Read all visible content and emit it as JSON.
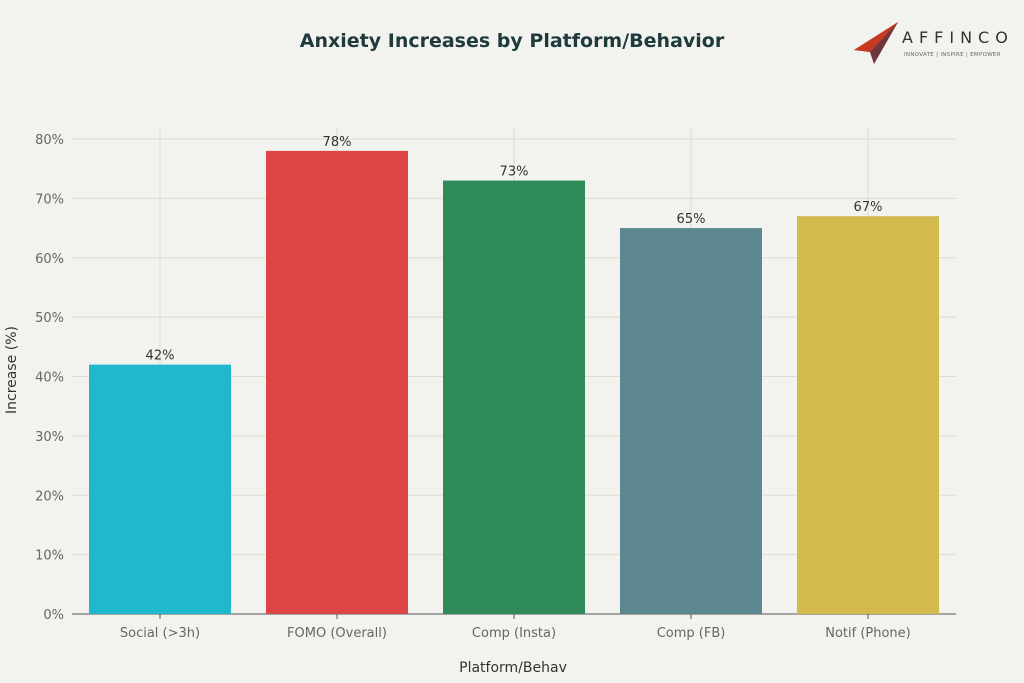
{
  "chart_data": {
    "type": "bar",
    "title": "Anxiety Increases by Platform/Behavior",
    "xlabel": "Platform/Behav",
    "ylabel": "Increase (%)",
    "categories": [
      "Social (>3h)",
      "FOMO (Overall)",
      "Comp (Insta)",
      "Comp (FB)",
      "Notif (Phone)"
    ],
    "values": [
      42,
      78,
      73,
      65,
      67
    ],
    "data_labels": [
      "42%",
      "78%",
      "73%",
      "65%",
      "67%"
    ],
    "colors": [
      "#1fb8cd",
      "#db4545",
      "#2e8b57",
      "#5d878f",
      "#d2ba4c"
    ],
    "ylim": [
      0,
      80
    ],
    "yticks": [
      "0%",
      "10%",
      "20%",
      "30%",
      "40%",
      "50%",
      "60%",
      "70%",
      "80%"
    ],
    "grid": true,
    "legend": "none"
  },
  "logo": {
    "name": "AFFINCO",
    "tagline": "INNOVATE | INSPIRE | EMPOWER"
  }
}
